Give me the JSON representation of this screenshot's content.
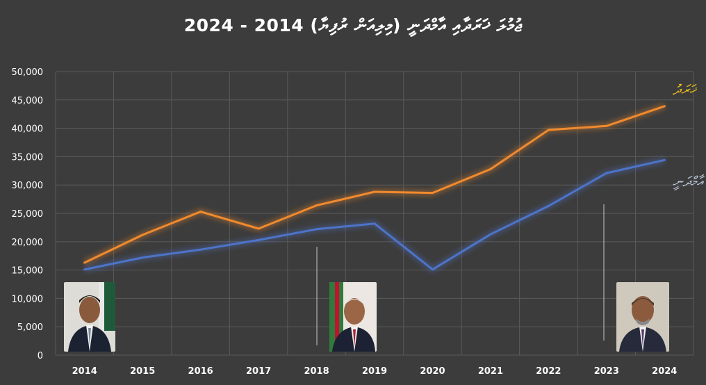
{
  "chart_data": {
    "type": "line",
    "title": "ޖުމުލަ ޚަރަދާއި އާމްދަނީ (މިލިއަން ރުފިޔާ) 2014 - 2024",
    "xlabel": "",
    "ylabel": "",
    "categories": [
      "2014",
      "2015",
      "2016",
      "2017",
      "2018",
      "2019",
      "2020",
      "2021",
      "2022",
      "2023",
      "2024"
    ],
    "ylim": [
      0,
      50000
    ],
    "yticks": [
      "0",
      "5,000",
      "10,000",
      "15,000",
      "20,000",
      "25,000",
      "30,000",
      "35,000",
      "40,000",
      "45,000",
      "50,000"
    ],
    "grid": true,
    "series": [
      {
        "name": "ޚަރަދު",
        "color": "#f08a2e",
        "values": [
          16300,
          21200,
          25300,
          22300,
          26400,
          28800,
          28600,
          32800,
          39700,
          40400,
          43900
        ]
      },
      {
        "name": "އާމްދަނީ",
        "color": "#4d74c9",
        "values": [
          15100,
          17200,
          18600,
          20300,
          22200,
          23200,
          15100,
          21300,
          26300,
          32100,
          34400
        ]
      }
    ]
  },
  "colors": {
    "background": "#3c3c3c",
    "gridline": "#5a5a5a",
    "text": "#ffffff",
    "expenditure_label": "#f5c518",
    "revenue_label": "#bcc9dd"
  }
}
